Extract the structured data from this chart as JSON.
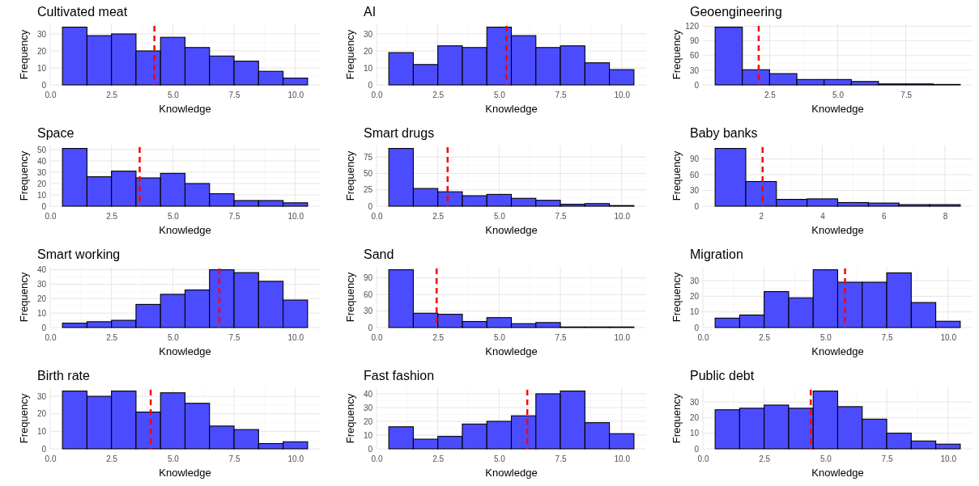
{
  "chart_data": [
    {
      "type": "histogram",
      "title": "Cultivated meat",
      "xlabel": "Knowledge",
      "ylabel": "Frequency",
      "bins": [
        0.5,
        1.5,
        2.5,
        3.5,
        4.5,
        5.5,
        6.5,
        7.5,
        8.5,
        9.5,
        10.5
      ],
      "values": [
        34,
        29,
        30,
        20,
        28,
        22,
        17,
        14,
        8,
        4
      ],
      "color": "#4c4cff",
      "xlim": [
        0,
        11
      ],
      "xticks": [
        {
          "value": 0,
          "label": "0.0"
        },
        2.5,
        {
          "value": 5,
          "label": "5.0"
        },
        7.5,
        {
          "value": 10,
          "label": "10.0"
        }
      ],
      "ylim": [
        0,
        35.7
      ],
      "yticks": [
        0,
        10,
        20,
        30
      ],
      "grid": true,
      "ref_lines": [
        {
          "axis": "x",
          "value": 4.25,
          "color": "#ff0000",
          "line_style": "dashed"
        }
      ]
    },
    {
      "type": "histogram",
      "title": "AI",
      "xlabel": "Knowledge",
      "ylabel": "Frequency",
      "bins": [
        0.5,
        1.5,
        2.5,
        3.5,
        4.5,
        5.5,
        6.5,
        7.5,
        8.5,
        9.5,
        10.5
      ],
      "values": [
        19,
        12,
        23,
        22,
        34,
        29,
        22,
        23,
        13,
        9
      ],
      "color": "#4c4cff",
      "xlim": [
        0,
        11
      ],
      "xticks": [
        {
          "value": 0,
          "label": "0.0"
        },
        2.5,
        {
          "value": 5,
          "label": "5.0"
        },
        7.5,
        {
          "value": 10,
          "label": "10.0"
        }
      ],
      "ylim": [
        0,
        35.7
      ],
      "yticks": [
        0,
        10,
        20,
        30
      ],
      "grid": true,
      "ref_lines": [
        {
          "axis": "x",
          "value": 5.3,
          "color": "#ff0000",
          "line_style": "dashed"
        }
      ]
    },
    {
      "type": "histogram",
      "title": "Geoengineering",
      "xlabel": "Knowledge",
      "ylabel": "Frequency",
      "bins": [
        0.5,
        1.5,
        2.5,
        3.5,
        4.5,
        5.5,
        6.5,
        7.5,
        8.5,
        9.5
      ],
      "values": [
        118,
        31,
        23,
        11,
        11,
        7,
        2,
        2,
        1
      ],
      "color": "#4c4cff",
      "xlim": [
        0.05,
        9.95
      ],
      "xticks": [
        2.5,
        {
          "value": 5,
          "label": "5.0"
        },
        7.5
      ],
      "ylim": [
        0,
        123.9
      ],
      "yticks": [
        0,
        30,
        60,
        90,
        120
      ],
      "grid": true,
      "ref_lines": [
        {
          "axis": "x",
          "value": 2.1,
          "color": "#ff0000",
          "line_style": "dashed"
        }
      ]
    },
    {
      "type": "histogram",
      "title": "Space",
      "xlabel": "Knowledge",
      "ylabel": "Frequency",
      "bins": [
        0.5,
        1.5,
        2.5,
        3.5,
        4.5,
        5.5,
        6.5,
        7.5,
        8.5,
        9.5,
        10.5
      ],
      "values": [
        51,
        26,
        31,
        25,
        29,
        20,
        11,
        5,
        5,
        3
      ],
      "color": "#4c4cff",
      "xlim": [
        0,
        11
      ],
      "xticks": [
        {
          "value": 0,
          "label": "0.0"
        },
        2.5,
        {
          "value": 5,
          "label": "5.0"
        },
        7.5,
        {
          "value": 10,
          "label": "10.0"
        }
      ],
      "ylim": [
        0,
        53.55
      ],
      "yticks": [
        0,
        10,
        20,
        30,
        40,
        50
      ],
      "grid": true,
      "ref_lines": [
        {
          "axis": "x",
          "value": 3.65,
          "color": "#ff0000",
          "line_style": "dashed"
        }
      ]
    },
    {
      "type": "histogram",
      "title": "Smart drugs",
      "xlabel": "Knowledge",
      "ylabel": "Frequency",
      "bins": [
        0.5,
        1.5,
        2.5,
        3.5,
        4.5,
        5.5,
        6.5,
        7.5,
        8.5,
        9.5,
        10.5
      ],
      "values": [
        88,
        27,
        22,
        16,
        18,
        12,
        9,
        3,
        4,
        1
      ],
      "color": "#4c4cff",
      "xlim": [
        0,
        11
      ],
      "xticks": [
        {
          "value": 0,
          "label": "0.0"
        },
        2.5,
        {
          "value": 5,
          "label": "5.0"
        },
        7.5,
        {
          "value": 10,
          "label": "10.0"
        }
      ],
      "ylim": [
        0,
        92.4
      ],
      "yticks": [
        0,
        25,
        50,
        75
      ],
      "grid": true,
      "ref_lines": [
        {
          "axis": "x",
          "value": 2.9,
          "color": "#ff0000",
          "line_style": "dashed"
        }
      ]
    },
    {
      "type": "histogram",
      "title": "Baby banks",
      "xlabel": "Knowledge",
      "ylabel": "Frequency",
      "bins": [
        0.5,
        1.5,
        2.5,
        3.5,
        4.5,
        5.5,
        6.5,
        7.5,
        8.5
      ],
      "values": [
        110,
        47,
        13,
        14,
        7,
        6,
        3,
        3
      ],
      "color": "#4c4cff",
      "xlim": [
        0.1,
        8.9
      ],
      "xticks": [
        2,
        4,
        6,
        8
      ],
      "ylim": [
        0,
        115.5
      ],
      "yticks": [
        0,
        30,
        60,
        90
      ],
      "grid": true,
      "ref_lines": [
        {
          "axis": "x",
          "value": 2.05,
          "color": "#ff0000",
          "line_style": "dashed"
        }
      ]
    },
    {
      "type": "histogram",
      "title": "Smart working",
      "xlabel": "Knowledge",
      "ylabel": "Frequency",
      "bins": [
        0.5,
        1.5,
        2.5,
        3.5,
        4.5,
        5.5,
        6.5,
        7.5,
        8.5,
        9.5,
        10.5
      ],
      "values": [
        3,
        4,
        5,
        16,
        23,
        26,
        40,
        38,
        32,
        19
      ],
      "color": "#4c4cff",
      "xlim": [
        0,
        11
      ],
      "xticks": [
        {
          "value": 0,
          "label": "0.0"
        },
        2.5,
        {
          "value": 5,
          "label": "5.0"
        },
        7.5,
        {
          "value": 10,
          "label": "10.0"
        }
      ],
      "ylim": [
        0,
        42
      ],
      "yticks": [
        0,
        10,
        20,
        30,
        40
      ],
      "grid": true,
      "ref_lines": [
        {
          "axis": "x",
          "value": 6.9,
          "color": "#ff0000",
          "line_style": "dashed"
        }
      ]
    },
    {
      "type": "histogram",
      "title": "Sand",
      "xlabel": "Knowledge",
      "ylabel": "Frequency",
      "bins": [
        0.5,
        1.5,
        2.5,
        3.5,
        4.5,
        5.5,
        6.5,
        7.5,
        8.5,
        9.5,
        10.5
      ],
      "values": [
        105,
        26,
        24,
        11,
        18,
        7,
        9,
        1,
        1,
        1
      ],
      "color": "#4c4cff",
      "xlim": [
        0,
        11
      ],
      "xticks": [
        {
          "value": 0,
          "label": "0.0"
        },
        2.5,
        {
          "value": 5,
          "label": "5.0"
        },
        7.5,
        {
          "value": 10,
          "label": "10.0"
        }
      ],
      "ylim": [
        0,
        110.25
      ],
      "yticks": [
        0,
        30,
        60,
        90
      ],
      "grid": true,
      "ref_lines": [
        {
          "axis": "x",
          "value": 2.45,
          "color": "#ff0000",
          "line_style": "dashed"
        }
      ]
    },
    {
      "type": "histogram",
      "title": "Migration",
      "xlabel": "Knowledge",
      "ylabel": "Frequency",
      "bins": [
        0.5,
        1.5,
        2.5,
        3.5,
        4.5,
        5.5,
        6.5,
        7.5,
        8.5,
        9.5,
        10.5
      ],
      "values": [
        6,
        8,
        23,
        19,
        37,
        29,
        29,
        35,
        16,
        4
      ],
      "color": "#4c4cff",
      "xlim": [
        0,
        11
      ],
      "xticks": [
        {
          "value": 0,
          "label": "0.0"
        },
        2.5,
        {
          "value": 5,
          "label": "5.0"
        },
        7.5,
        {
          "value": 10,
          "label": "10.0"
        }
      ],
      "ylim": [
        0,
        38.85
      ],
      "yticks": [
        0,
        10,
        20,
        30
      ],
      "grid": true,
      "ref_lines": [
        {
          "axis": "x",
          "value": 5.8,
          "color": "#ff0000",
          "line_style": "dashed"
        }
      ]
    },
    {
      "type": "histogram",
      "title": "Birth rate",
      "xlabel": "Knowledge",
      "ylabel": "Frequency",
      "bins": [
        0.5,
        1.5,
        2.5,
        3.5,
        4.5,
        5.5,
        6.5,
        7.5,
        8.5,
        9.5,
        10.5
      ],
      "values": [
        33,
        30,
        33,
        21,
        32,
        26,
        13,
        11,
        3,
        4
      ],
      "color": "#4c4cff",
      "xlim": [
        0,
        11
      ],
      "xticks": [
        {
          "value": 0,
          "label": "0.0"
        },
        2.5,
        {
          "value": 5,
          "label": "5.0"
        },
        7.5,
        {
          "value": 10,
          "label": "10.0"
        }
      ],
      "ylim": [
        0,
        34.65
      ],
      "yticks": [
        0,
        10,
        20,
        30
      ],
      "grid": true,
      "ref_lines": [
        {
          "axis": "x",
          "value": 4.1,
          "color": "#ff0000",
          "line_style": "dashed"
        }
      ]
    },
    {
      "type": "histogram",
      "title": "Fast fashion",
      "xlabel": "Knowledge",
      "ylabel": "Frequency",
      "bins": [
        0.5,
        1.5,
        2.5,
        3.5,
        4.5,
        5.5,
        6.5,
        7.5,
        8.5,
        9.5,
        10.5
      ],
      "values": [
        16,
        7,
        9,
        18,
        20,
        24,
        40,
        42,
        19,
        11
      ],
      "color": "#4c4cff",
      "xlim": [
        0,
        11
      ],
      "xticks": [
        {
          "value": 0,
          "label": "0.0"
        },
        2.5,
        {
          "value": 5,
          "label": "5.0"
        },
        7.5,
        {
          "value": 10,
          "label": "10.0"
        }
      ],
      "ylim": [
        0,
        44.1
      ],
      "yticks": [
        0,
        10,
        20,
        30,
        40
      ],
      "grid": true,
      "ref_lines": [
        {
          "axis": "x",
          "value": 6.15,
          "color": "#ff0000",
          "line_style": "dashed"
        }
      ]
    },
    {
      "type": "histogram",
      "title": "Public debt",
      "xlabel": "Knowledge",
      "ylabel": "Frequency",
      "bins": [
        0.5,
        1.5,
        2.5,
        3.5,
        4.5,
        5.5,
        6.5,
        7.5,
        8.5,
        9.5,
        10.5
      ],
      "values": [
        25,
        26,
        28,
        26,
        37,
        27,
        19,
        10,
        5,
        3
      ],
      "color": "#4c4cff",
      "xlim": [
        0,
        11
      ],
      "xticks": [
        {
          "value": 0,
          "label": "0.0"
        },
        2.5,
        {
          "value": 5,
          "label": "5.0"
        },
        7.5,
        {
          "value": 10,
          "label": "10.0"
        }
      ],
      "ylim": [
        0,
        38.85
      ],
      "yticks": [
        0,
        10,
        20,
        30
      ],
      "grid": true,
      "ref_lines": [
        {
          "axis": "x",
          "value": 4.4,
          "color": "#ff0000",
          "line_style": "dashed"
        }
      ]
    }
  ]
}
